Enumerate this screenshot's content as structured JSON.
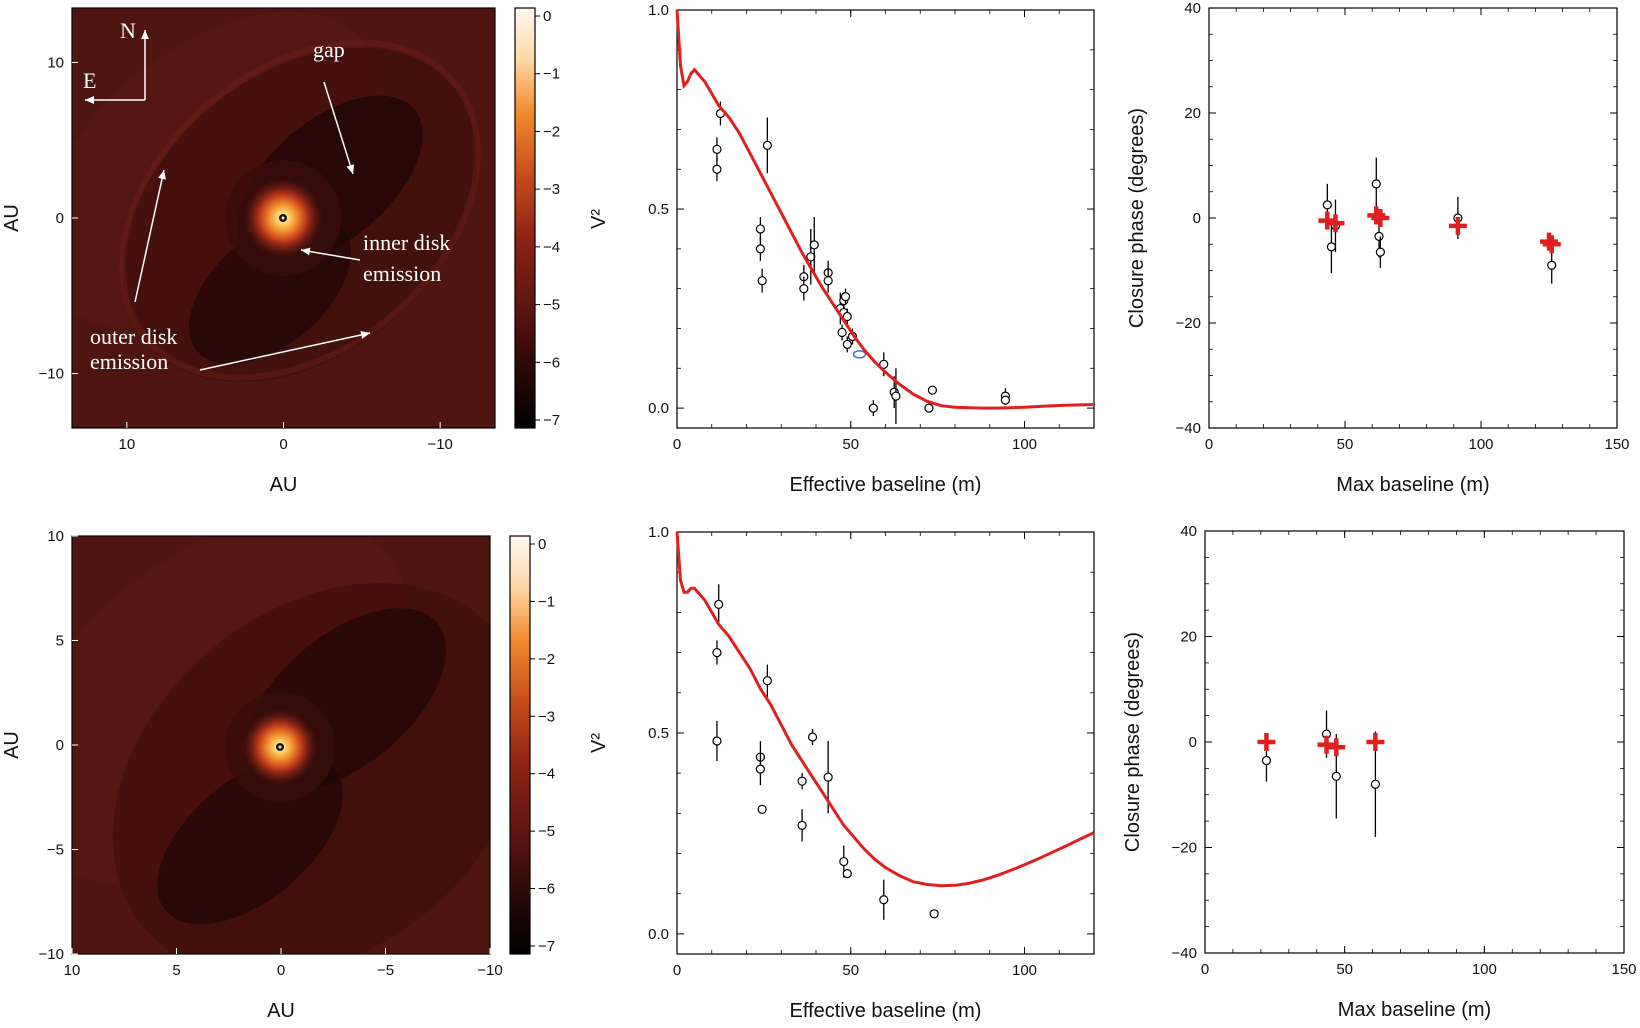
{
  "colors": {
    "model": "#e02020",
    "point": "#000000",
    "highlight": "#3a78c8",
    "cbar_top": "#fff8ee",
    "cbar_mid": "#f28a2c",
    "cbar_low": "#7a1410",
    "cbar_bottom": "#000000",
    "disk": "#4a1410"
  },
  "chart_data": [
    {
      "type": "heatmap",
      "panel": "top-left image",
      "xlabel": "AU",
      "ylabel": "AU",
      "xlim": [
        13.5,
        -13.5
      ],
      "ylim": [
        -13.5,
        13.5
      ],
      "xticks": [
        "10",
        "0",
        "−10"
      ],
      "xtick_values": [
        10,
        0,
        -10
      ],
      "yticks": [
        "10",
        "0",
        "−10"
      ],
      "ytick_values": [
        10,
        0,
        -10
      ],
      "colorbar": {
        "ticks": [
          "0",
          "−1",
          "−2",
          "−3",
          "−4",
          "−5",
          "−6",
          "−7"
        ],
        "range": [
          -7,
          0
        ]
      },
      "annotations": {
        "north": "N",
        "east": "E",
        "gap": "gap",
        "inner1": "inner disk",
        "inner2": "emission",
        "outer1": "outer disk",
        "outer2": "emission"
      }
    },
    {
      "type": "scatter",
      "panel": "top-middle visibility",
      "xlabel": "Effective baseline (m)",
      "ylabel": "V²",
      "xlim": [
        0,
        120
      ],
      "ylim": [
        -0.05,
        1.0
      ],
      "xticks": [
        "0",
        "50",
        "100"
      ],
      "xtick_values": [
        0,
        50,
        100
      ],
      "yticks": [
        "0.0",
        "0.5",
        "1.0"
      ],
      "ytick_values": [
        0,
        0.5,
        1.0
      ],
      "points": [
        {
          "x": 11.5,
          "y": 0.65,
          "err": 0.03
        },
        {
          "x": 11.5,
          "y": 0.6,
          "err": 0.03
        },
        {
          "x": 12.5,
          "y": 0.74,
          "err": 0.03
        },
        {
          "x": 24,
          "y": 0.45,
          "err": 0.03
        },
        {
          "x": 24,
          "y": 0.4,
          "err": 0.03
        },
        {
          "x": 24.5,
          "y": 0.32,
          "err": 0.03
        },
        {
          "x": 26,
          "y": 0.66,
          "err": 0.07
        },
        {
          "x": 36.5,
          "y": 0.33,
          "err": 0.03
        },
        {
          "x": 36.5,
          "y": 0.3,
          "err": 0.03
        },
        {
          "x": 38.5,
          "y": 0.38,
          "err": 0.07
        },
        {
          "x": 39.5,
          "y": 0.41,
          "err": 0.07
        },
        {
          "x": 43.5,
          "y": 0.34,
          "err": 0.03
        },
        {
          "x": 43.5,
          "y": 0.32,
          "err": 0.03
        },
        {
          "x": 47,
          "y": 0.25,
          "err": 0.04
        },
        {
          "x": 47.5,
          "y": 0.19,
          "err": 0.02
        },
        {
          "x": 48,
          "y": 0.27,
          "err": 0.02
        },
        {
          "x": 48,
          "y": 0.24,
          "err": 0.02
        },
        {
          "x": 48.5,
          "y": 0.28,
          "err": 0.02
        },
        {
          "x": 49,
          "y": 0.23,
          "err": 0.02
        },
        {
          "x": 49,
          "y": 0.16,
          "err": 0.02
        },
        {
          "x": 50.5,
          "y": 0.18,
          "err": 0.02
        },
        {
          "x": 56.5,
          "y": 0.0,
          "err": 0.02
        },
        {
          "x": 59.5,
          "y": 0.11,
          "err": 0.03
        },
        {
          "x": 62.5,
          "y": 0.04,
          "err": 0.04
        },
        {
          "x": 63,
          "y": 0.03,
          "err": 0.07
        },
        {
          "x": 72.5,
          "y": 0.0,
          "err": 0.01
        },
        {
          "x": 73.5,
          "y": 0.045,
          "err": 0.01
        },
        {
          "x": 94.5,
          "y": 0.03,
          "err": 0.02
        },
        {
          "x": 94.5,
          "y": 0.02,
          "err": 0.01
        }
      ],
      "highlight_point": {
        "x": 52.5,
        "y": 0.135
      },
      "model": {
        "x": [
          0,
          1,
          2,
          3,
          4,
          5,
          6,
          8,
          10,
          12,
          15,
          18,
          21,
          24,
          27,
          30,
          33,
          36,
          39,
          42,
          45,
          48,
          51,
          54,
          57,
          60,
          64,
          68,
          72,
          76,
          80,
          84,
          88,
          92,
          96,
          100,
          104,
          108,
          112,
          116,
          120
        ],
        "y": [
          1.0,
          0.86,
          0.81,
          0.82,
          0.84,
          0.85,
          0.84,
          0.82,
          0.79,
          0.76,
          0.73,
          0.69,
          0.64,
          0.59,
          0.54,
          0.49,
          0.44,
          0.39,
          0.345,
          0.3,
          0.26,
          0.22,
          0.18,
          0.145,
          0.115,
          0.09,
          0.06,
          0.035,
          0.017,
          0.006,
          0.002,
          0.001,
          0.0,
          0.0,
          0.001,
          0.002,
          0.004,
          0.006,
          0.007,
          0.008,
          0.009
        ]
      }
    },
    {
      "type": "scatter",
      "panel": "top-right closure phase",
      "xlabel": "Max baseline (m)",
      "ylabel": "Closure phase (degrees)",
      "xlim": [
        0,
        150
      ],
      "ylim": [
        -40,
        40
      ],
      "xticks": [
        "0",
        "50",
        "100",
        "150"
      ],
      "xtick_values": [
        0,
        50,
        100,
        150
      ],
      "yticks": [
        "−40",
        "−20",
        "0",
        "20",
        "40"
      ],
      "ytick_values": [
        -40,
        -20,
        0,
        20,
        40
      ],
      "data_points": [
        {
          "x": 43.5,
          "y": 2.5,
          "err": 4
        },
        {
          "x": 45,
          "y": -5.5,
          "err": 5
        },
        {
          "x": 46.5,
          "y": -1.5,
          "err": 5
        },
        {
          "x": 61.5,
          "y": 6.5,
          "err": 5
        },
        {
          "x": 62.5,
          "y": -3.5,
          "err": 4
        },
        {
          "x": 63,
          "y": -6.5,
          "err": 3
        },
        {
          "x": 91.5,
          "y": 0,
          "err": 4
        },
        {
          "x": 126,
          "y": -9,
          "err": 3.5
        }
      ],
      "model_points": [
        {
          "x": 43.5,
          "y": -0.5
        },
        {
          "x": 46.5,
          "y": -1
        },
        {
          "x": 61.5,
          "y": 0.5
        },
        {
          "x": 63,
          "y": 0
        },
        {
          "x": 91.5,
          "y": -1.5
        },
        {
          "x": 125,
          "y": -4.5
        },
        {
          "x": 126,
          "y": -5
        }
      ]
    },
    {
      "type": "heatmap",
      "panel": "bottom-left image",
      "xlabel": "AU",
      "ylabel": "AU",
      "xlim": [
        10,
        -10
      ],
      "ylim": [
        -10,
        10
      ],
      "xticks": [
        "10",
        "5",
        "0",
        "−5",
        "−10"
      ],
      "xtick_values": [
        10,
        5,
        0,
        -5,
        -10
      ],
      "yticks": [
        "−10",
        "−5",
        "0",
        "5",
        "10"
      ],
      "ytick_values": [
        -10,
        -5,
        0,
        5,
        10
      ],
      "colorbar": {
        "ticks": [
          "0",
          "−1",
          "−2",
          "−3",
          "−4",
          "−5",
          "−6",
          "−7"
        ],
        "range": [
          -7,
          0
        ]
      }
    },
    {
      "type": "scatter",
      "panel": "bottom-middle visibility",
      "xlabel": "Effective baseline (m)",
      "ylabel": "V²",
      "xlim": [
        0,
        120
      ],
      "ylim": [
        -0.05,
        1.0
      ],
      "xticks": [
        "0",
        "50",
        "100"
      ],
      "xtick_values": [
        0,
        50,
        100
      ],
      "yticks": [
        "0.0",
        "0.5",
        "1.0"
      ],
      "ytick_values": [
        0,
        0.5,
        1.0
      ],
      "points": [
        {
          "x": 11.5,
          "y": 0.7,
          "err": 0.03
        },
        {
          "x": 11.5,
          "y": 0.48,
          "err": 0.05
        },
        {
          "x": 12,
          "y": 0.82,
          "err": 0.05
        },
        {
          "x": 24,
          "y": 0.44,
          "err": 0.04
        },
        {
          "x": 24,
          "y": 0.41,
          "err": 0.04
        },
        {
          "x": 24.5,
          "y": 0.31,
          "err": 0.01
        },
        {
          "x": 26,
          "y": 0.63,
          "err": 0.04
        },
        {
          "x": 36,
          "y": 0.38,
          "err": 0.02
        },
        {
          "x": 36,
          "y": 0.27,
          "err": 0.04
        },
        {
          "x": 39,
          "y": 0.49,
          "err": 0.02
        },
        {
          "x": 43.5,
          "y": 0.39,
          "err": 0.09
        },
        {
          "x": 48,
          "y": 0.18,
          "err": 0.04
        },
        {
          "x": 49,
          "y": 0.15,
          "err": 0.01
        },
        {
          "x": 59.5,
          "y": 0.085,
          "err": 0.05
        },
        {
          "x": 74,
          "y": 0.05,
          "err": 0.01
        }
      ],
      "model": {
        "x": [
          0,
          1,
          2,
          3,
          4,
          5,
          6,
          8,
          10,
          12,
          15,
          18,
          21,
          24,
          27,
          30,
          33,
          36,
          39,
          42,
          45,
          48,
          51,
          54,
          57,
          60,
          64,
          68,
          72,
          76,
          80,
          84,
          88,
          92,
          96,
          100,
          104,
          108,
          112,
          116,
          120
        ],
        "y": [
          1.0,
          0.88,
          0.85,
          0.85,
          0.86,
          0.86,
          0.85,
          0.83,
          0.8,
          0.77,
          0.74,
          0.7,
          0.66,
          0.61,
          0.57,
          0.52,
          0.47,
          0.43,
          0.39,
          0.35,
          0.31,
          0.27,
          0.24,
          0.21,
          0.185,
          0.165,
          0.145,
          0.13,
          0.123,
          0.12,
          0.121,
          0.126,
          0.134,
          0.145,
          0.158,
          0.172,
          0.187,
          0.203,
          0.219,
          0.236,
          0.252
        ]
      }
    },
    {
      "type": "scatter",
      "panel": "bottom-right closure phase",
      "xlabel": "Max baseline (m)",
      "ylabel": "Closure phase (degrees)",
      "xlim": [
        0,
        150
      ],
      "ylim": [
        -40,
        40
      ],
      "xticks": [
        "0",
        "50",
        "100",
        "150"
      ],
      "xtick_values": [
        0,
        50,
        100,
        150
      ],
      "yticks": [
        "−40",
        "−20",
        "0",
        "20",
        "40"
      ],
      "ytick_values": [
        -40,
        -20,
        0,
        20,
        40
      ],
      "data_points": [
        {
          "x": 22,
          "y": -3.5,
          "err": 4
        },
        {
          "x": 43.5,
          "y": 1.5,
          "err": 4.5
        },
        {
          "x": 47,
          "y": -6.5,
          "err": 8
        },
        {
          "x": 61,
          "y": -8,
          "err": 10
        }
      ],
      "model_points": [
        {
          "x": 22,
          "y": 0
        },
        {
          "x": 43.5,
          "y": -0.5
        },
        {
          "x": 47,
          "y": -1
        },
        {
          "x": 61,
          "y": 0
        }
      ]
    }
  ]
}
